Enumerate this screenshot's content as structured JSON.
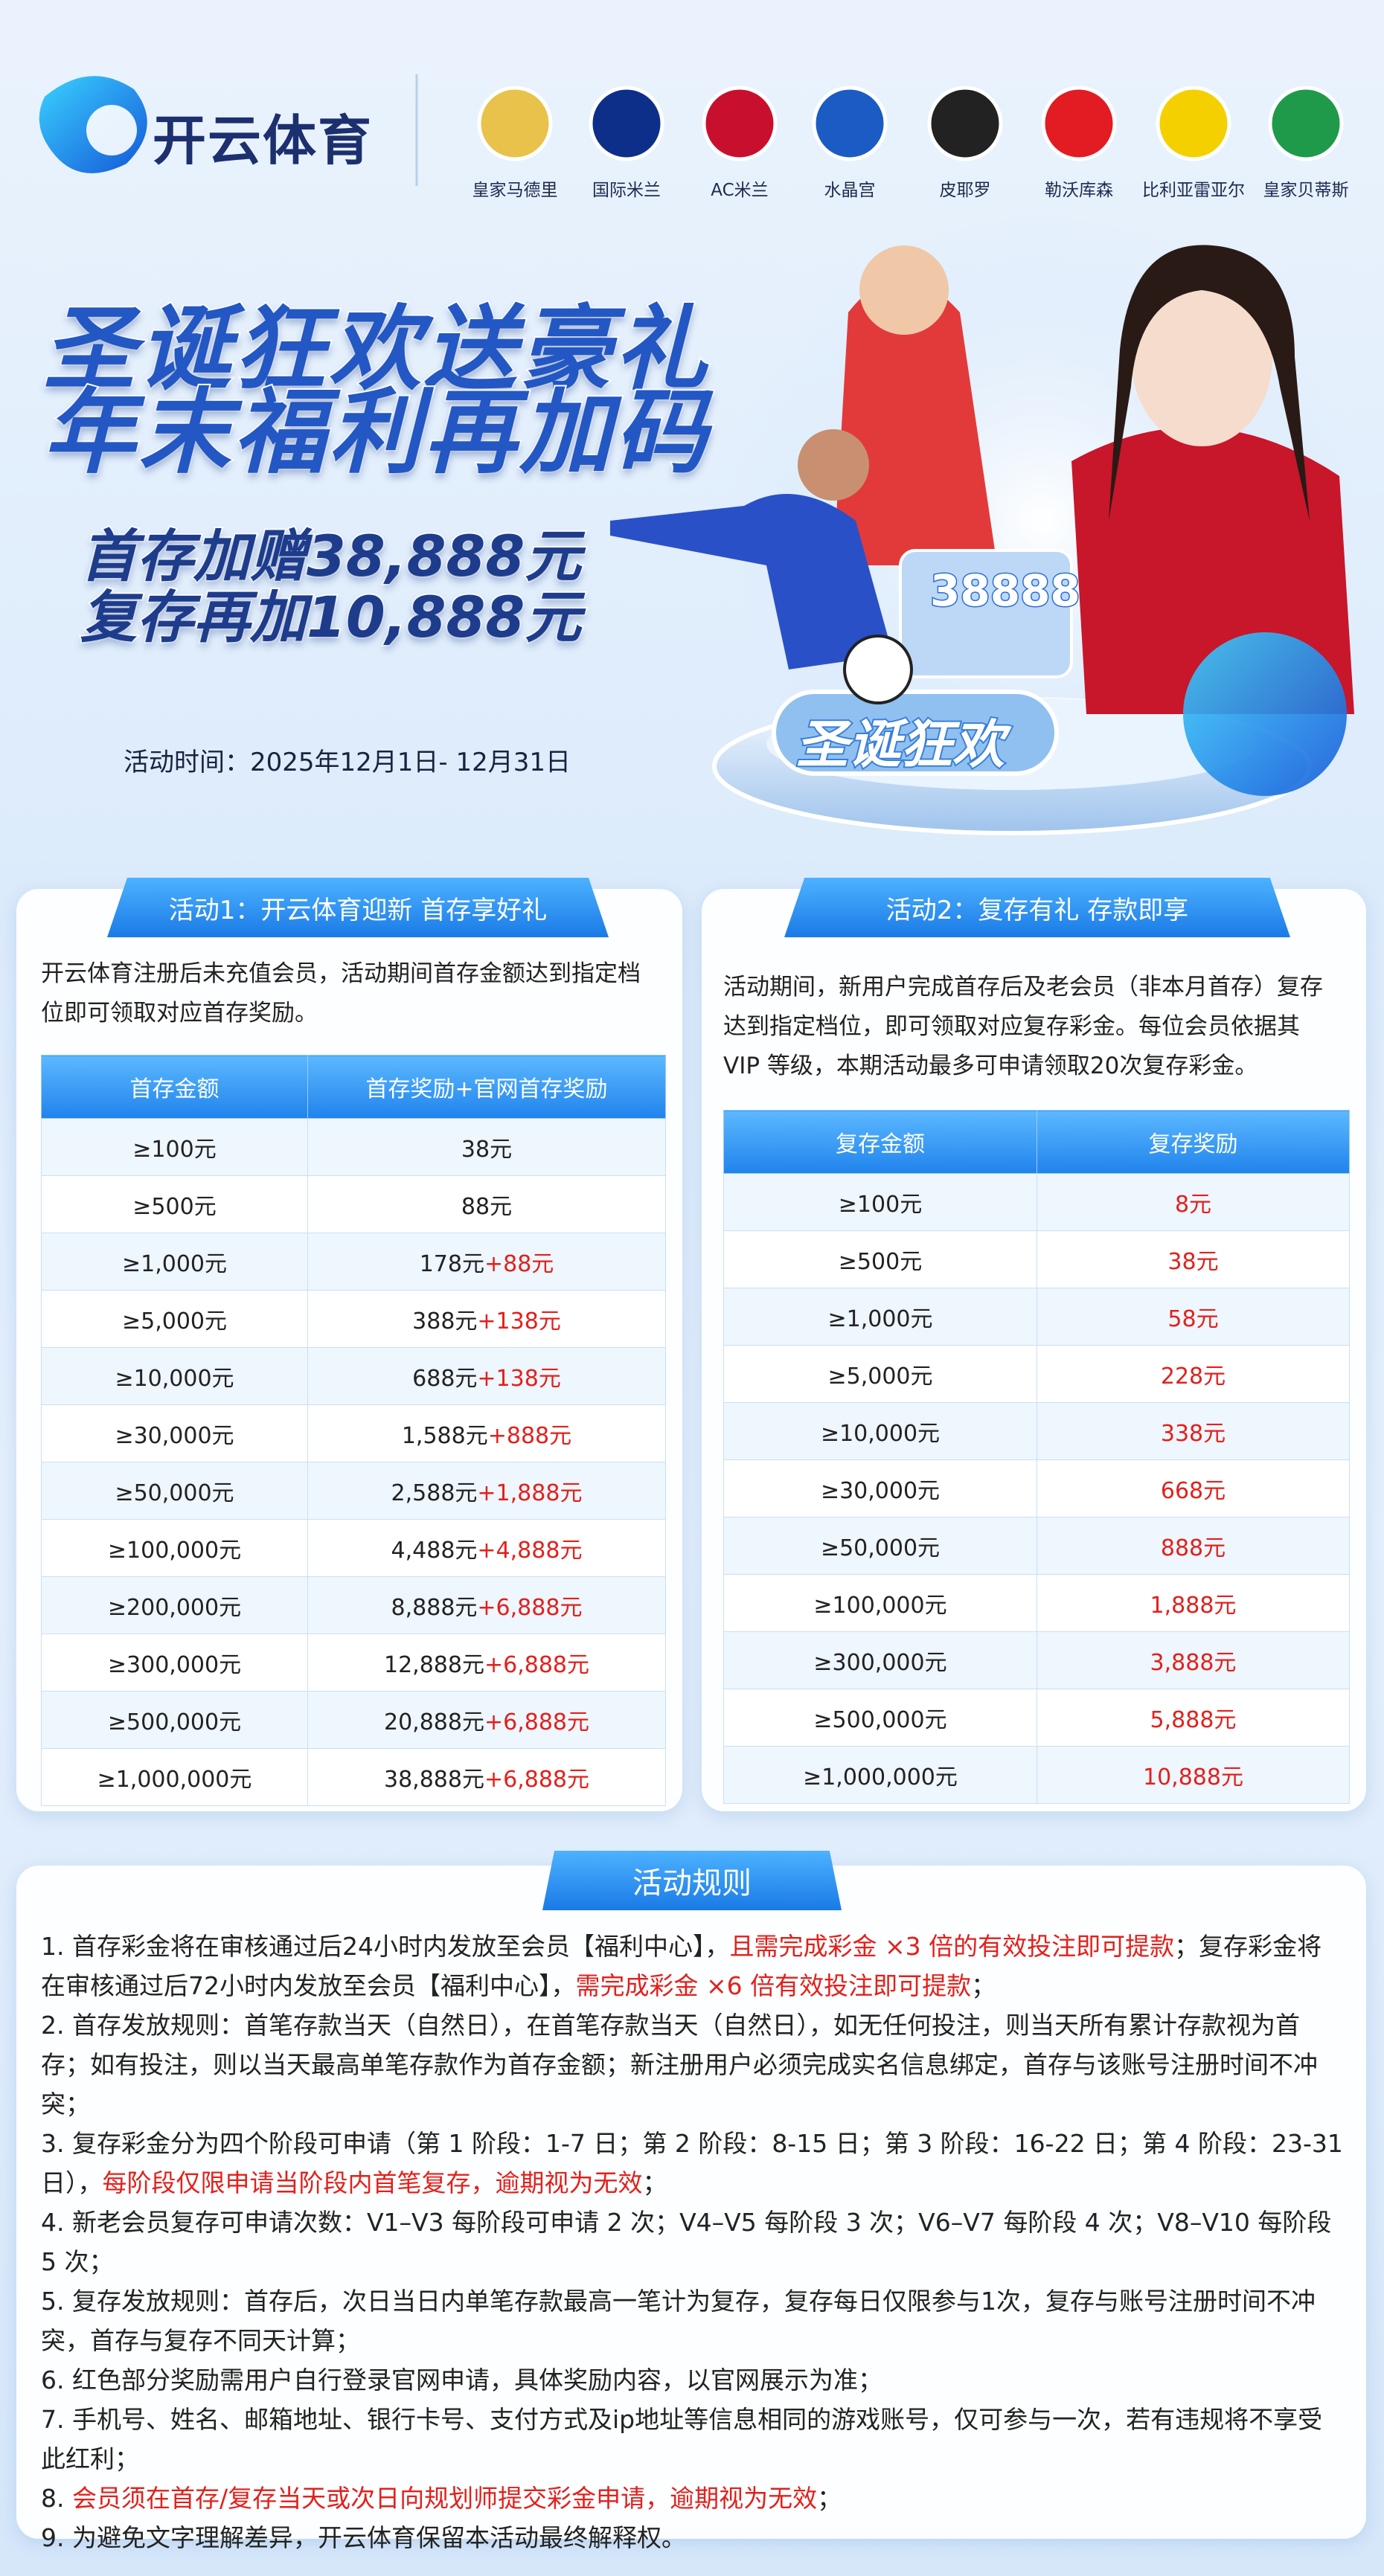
{
  "header": {
    "brand": "开云体育",
    "clubs": [
      "皇家马德里",
      "国际米兰",
      "AC米兰",
      "水晶宫",
      "皮耶罗",
      "勒沃库森",
      "比利亚雷亚尔",
      "皇家贝蒂斯"
    ]
  },
  "hero": {
    "title_lines": [
      "圣诞狂欢送豪礼",
      "年末福利再加码"
    ],
    "offer_lines": [
      "首存加赠38,888元",
      "复存再加10,888元"
    ],
    "period": "活动时间：2025年12月1日- 12月31日",
    "badge_amount": "38888",
    "stage_text": "圣诞狂欢"
  },
  "activity1": {
    "tab": "活动1：开云体育迎新 首存享好礼",
    "intro": "开云体育注册后未充值会员，活动期间首存金额达到指定档位即可领取对应首存奖励。",
    "columns": [
      "首存金额",
      "首存奖励+官网首存奖励"
    ],
    "extra_color": "#e3201b",
    "rows": [
      {
        "amount": "≥100元",
        "bonus": "38元"
      },
      {
        "amount": "≥500元",
        "bonus": "88元"
      },
      {
        "amount": "≥1,000元",
        "bonus": "178元",
        "extra": "+88元"
      },
      {
        "amount": "≥5,000元",
        "bonus": "388元",
        "extra": "+138元"
      },
      {
        "amount": "≥10,000元",
        "bonus": "688元",
        "extra": "+138元"
      },
      {
        "amount": "≥30,000元",
        "bonus": "1,588元",
        "extra": "+888元"
      },
      {
        "amount": "≥50,000元",
        "bonus": "2,588元",
        "extra": "+1,888元"
      },
      {
        "amount": "≥100,000元",
        "bonus": "4,488元",
        "extra": "+4,888元"
      },
      {
        "amount": "≥200,000元",
        "bonus": "8,888元",
        "extra": "+6,888元"
      },
      {
        "amount": "≥300,000元",
        "bonus": "12,888元",
        "extra": "+6,888元"
      },
      {
        "amount": "≥500,000元",
        "bonus": "20,888元",
        "extra": "+6,888元"
      },
      {
        "amount": "≥1,000,000元",
        "bonus": "38,888元",
        "extra": "+6,888元"
      }
    ]
  },
  "activity2": {
    "tab": "活动2：复存有礼 存款即享",
    "intro": "活动期间，新用户完成首存后及老会员（非本月首存）复存达到指定档位，即可领取对应复存彩金。每位会员依据其 VIP 等级，本期活动最多可申请领取20次复存彩金。",
    "columns": [
      "复存金额",
      "复存奖励"
    ],
    "reward_color": "#e3201b",
    "rows": [
      [
        "≥100元",
        "8元"
      ],
      [
        "≥500元",
        "38元"
      ],
      [
        "≥1,000元",
        "58元"
      ],
      [
        "≥5,000元",
        "228元"
      ],
      [
        "≥10,000元",
        "338元"
      ],
      [
        "≥30,000元",
        "668元"
      ],
      [
        "≥50,000元",
        "888元"
      ],
      [
        "≥100,000元",
        "1,888元"
      ],
      [
        "≥300,000元",
        "3,888元"
      ],
      [
        "≥500,000元",
        "5,888元"
      ],
      [
        "≥1,000,000元",
        "10,888元"
      ]
    ]
  },
  "rules": {
    "tab": "活动规则",
    "items": [
      [
        {
          "text": "1. 首存彩金将在审核通过后24小时内发放至会员【福利中心】，"
        },
        {
          "text": "且需完成彩金 ×3 倍的有效投注即可提款",
          "color": "#e3201b"
        },
        {
          "text": "；复存彩金将在审核通过后72小时内发放至会员【福利中心】，"
        },
        {
          "text": "需完成彩金 ×6 倍有效投注即可提款",
          "color": "#e3201b"
        },
        {
          "text": "；"
        }
      ],
      [
        {
          "text": "2. 首存发放规则：首笔存款当天（自然日），在首笔存款当天（自然日），如无任何投注，则当天所有累计存款视为首存；如有投注，则以当天最高单笔存款作为首存金额；新注册用户必须完成实名信息绑定，首存与该账号注册时间不冲突；"
        }
      ],
      [
        {
          "text": "3. 复存彩金分为四个阶段可申请（第 1 阶段：1-7 日；第 2 阶段：8-15 日；第 3 阶段：16-22 日；第 4 阶段：23-31 日），"
        },
        {
          "text": "每阶段仅限申请当阶段内首笔复存，逾期视为无效",
          "color": "#e3201b"
        },
        {
          "text": "；"
        }
      ],
      [
        {
          "text": "4. 新老会员复存可申请次数：V1–V3 每阶段可申请 2 次；V4–V5 每阶段 3 次；V6–V7 每阶段 4 次；V8–V10 每阶段 5 次；"
        }
      ],
      [
        {
          "text": "5. 复存发放规则：首存后，次日当日内单笔存款最高一笔计为复存，复存每日仅限参与1次，复存与账号注册时间不冲突，首存与复存不同天计算；"
        }
      ],
      [
        {
          "text": "6. 红色部分奖励需用户自行登录官网申请，具体奖励内容，以官网展示为准；"
        }
      ],
      [
        {
          "text": "7. 手机号、姓名、邮箱地址、银行卡号、支付方式及ip地址等信息相同的游戏账号，仅可参与一次，若有违规将不享受此红利；"
        }
      ],
      [
        {
          "text": "8. "
        },
        {
          "text": "会员须在首存/复存当天或次日向规划师提交彩金申请，逾期视为无效",
          "color": "#e3201b"
        },
        {
          "text": "；"
        }
      ],
      [
        {
          "text": "9. 为避免文字理解差异，开云体育保留本活动最终解释权。"
        }
      ]
    ]
  }
}
